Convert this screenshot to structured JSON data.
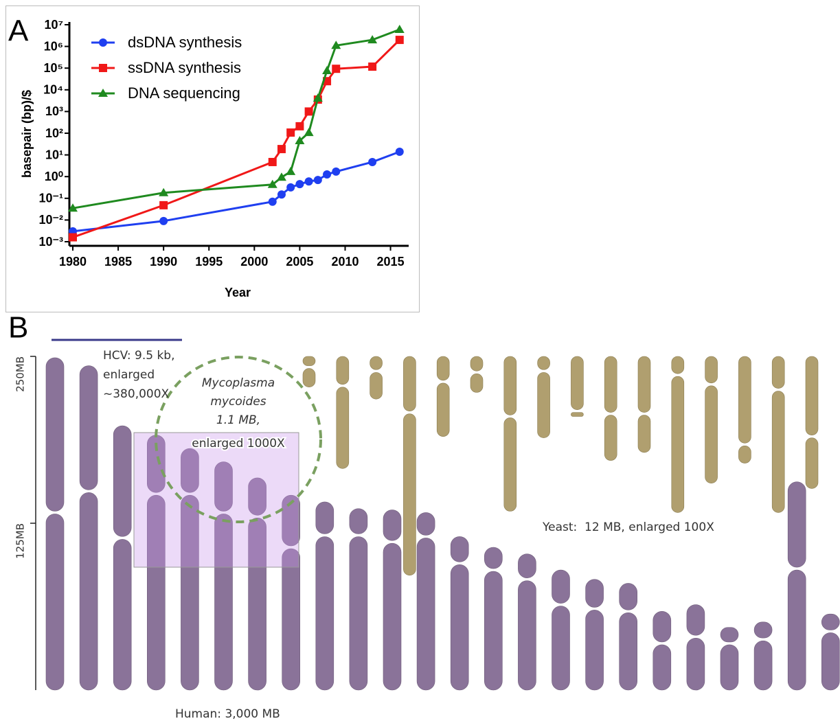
{
  "chart_data": [
    {
      "type": "line",
      "label": "A",
      "ylabel": "basepair (bp)/$",
      "xlabel": "Year",
      "x": [
        1980,
        1990,
        2002,
        2003,
        2004,
        2005,
        2006,
        2007,
        2008,
        2009,
        2013,
        2016
      ],
      "series": [
        {
          "name": "dsDNA synthesis",
          "color": "#1f3ff0",
          "marker": "circle",
          "values": [
            0.003,
            0.009,
            0.07,
            0.15,
            0.32,
            0.45,
            0.6,
            0.7,
            1.26,
            1.7,
            4.7,
            14
          ]
        },
        {
          "name": "ssDNA synthesis",
          "color": "#f01818",
          "marker": "square",
          "values": [
            0.0016,
            0.048,
            4.7,
            18.6,
            107,
            209,
            1000,
            3550,
            25000,
            93000,
            117000,
            2000000
          ]
        },
        {
          "name": "DNA sequencing",
          "color": "#1f8a1f",
          "marker": "triangle",
          "values": [
            0.035,
            0.18,
            0.43,
            0.93,
            1.7,
            45,
            107,
            4100,
            76000,
            1100000,
            2000000,
            6000000
          ]
        }
      ],
      "xlim": [
        1980,
        2017
      ],
      "xticks": [
        1980,
        1985,
        1990,
        1995,
        2000,
        2005,
        2010,
        2015
      ],
      "yscale": "log",
      "ylim": [
        0.001,
        10000000
      ],
      "yticks": [
        {
          "value": 0.001,
          "label": "10⁻³"
        },
        {
          "value": 0.01,
          "label": "10⁻²"
        },
        {
          "value": 0.1,
          "label": "10⁻¹"
        },
        {
          "value": 1,
          "label": "10⁰"
        },
        {
          "value": 10,
          "label": "10¹"
        },
        {
          "value": 100,
          "label": "10²"
        },
        {
          "value": 1000,
          "label": "10³"
        },
        {
          "value": 10000,
          "label": "10⁴"
        },
        {
          "value": 100000,
          "label": "10⁵"
        },
        {
          "value": 1000000,
          "label": "10⁶"
        },
        {
          "value": 10000000,
          "label": "10⁷"
        }
      ],
      "legend": "upper left"
    },
    {
      "type": "chromosome",
      "label": "B",
      "ylim": [
        0,
        250
      ],
      "yticks": [
        {
          "value": 125,
          "label": "125MB"
        },
        {
          "value": 250,
          "label": "250MB"
        }
      ],
      "series": [
        {
          "name": "Human: 3,000 MB",
          "color": "#8a7399",
          "align": "bottom",
          "values": [
            249,
            243,
            198,
            191,
            181,
            171,
            159,
            146,
            141,
            136,
            135,
            133,
            115,
            107,
            102,
            90,
            83,
            80,
            59,
            64,
            47,
            51,
            156,
            57
          ],
          "centromeres": [
            116,
            94,
            84,
            44,
            34,
            38,
            29,
            39,
            25,
            20,
            24,
            18,
            20,
            17,
            19,
            26,
            22,
            21,
            24,
            24,
            12,
            13,
            65,
            13
          ]
        },
        {
          "name": "Yeast:  12 MB, enlarged 100X",
          "color": "#b09f6f",
          "align": "top",
          "values": [
            23,
            84,
            32,
            164,
            60,
            27,
            116,
            61,
            45,
            78,
            72,
            117,
            95,
            80,
            117,
            99
          ],
          "centromeres": [
            8,
            22,
            11,
            42,
            19,
            12,
            45,
            11,
            41,
            43,
            43,
            14,
            21,
            66,
            25,
            60
          ]
        }
      ],
      "annotations": [
        "HCV: 9.5 kb,",
        "enlarged",
        "~380,000X",
        "Mycoplasma",
        "mycoides",
        "1.1 MB,",
        "enlarged 1000X"
      ]
    }
  ]
}
